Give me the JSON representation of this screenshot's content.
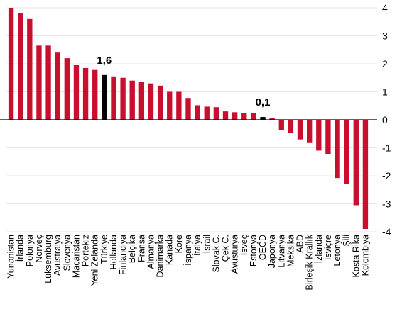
{
  "chart_data": {
    "type": "bar",
    "title": "",
    "xlabel": "",
    "ylabel": "",
    "ylim": [
      -4,
      4
    ],
    "yticks": [
      "4",
      "3",
      "2",
      "1",
      "0",
      "-1",
      "-2",
      "-3",
      "-4"
    ],
    "grid": true,
    "y_axis_position": "right",
    "colors": {
      "default": "#c8102e",
      "highlight": "#000000",
      "grid": "#e6e6e6",
      "zero_line": "#000000"
    },
    "categories": [
      "Yunanistan",
      "İrlanda",
      "Polonya",
      "Norveç",
      "Lüksemburg",
      "Avustralya",
      "Slovenya",
      "Macaristan",
      "Portekiz",
      "Yeni Zelanda",
      "Türkiye",
      "Hollanda",
      "Finlandiya",
      "Belçika",
      "Fransa",
      "Almanya",
      "Danimarka",
      "Kanada",
      "Kore",
      "İspanya",
      "İtalya",
      "İsrail",
      "Slovak C.",
      "Çek C.",
      "Avusturya",
      "İsveç",
      "Estonya",
      "OECD",
      "Japonya",
      "Litvanya",
      "Meksika",
      "ABD",
      "Birleşik Krallık",
      "İzlanda",
      "İsviçre",
      "Letonya",
      "Şili",
      "Kosta Rika",
      "Kolombiya"
    ],
    "values": [
      4.0,
      3.8,
      3.6,
      2.65,
      2.65,
      2.4,
      2.2,
      1.95,
      1.85,
      1.78,
      1.6,
      1.55,
      1.5,
      1.4,
      1.35,
      1.3,
      1.22,
      1.0,
      1.0,
      0.78,
      0.52,
      0.47,
      0.45,
      0.3,
      0.27,
      0.25,
      0.23,
      0.1,
      0.07,
      -0.38,
      -0.47,
      -0.7,
      -0.83,
      -1.1,
      -1.23,
      -2.08,
      -2.3,
      -3.05,
      -3.9
    ],
    "highlight": [
      "Türkiye",
      "OECD"
    ],
    "data_labels": [
      {
        "category": "Türkiye",
        "text": "1,6"
      },
      {
        "category": "OECD",
        "text": "0,1"
      }
    ]
  }
}
